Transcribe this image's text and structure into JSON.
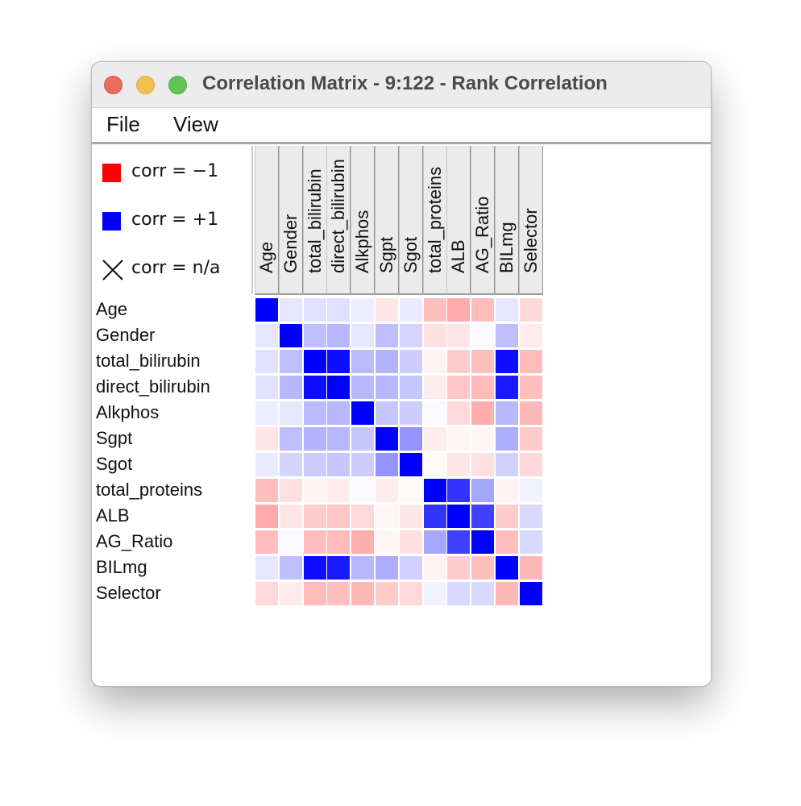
{
  "window": {
    "title": "Correlation Matrix - 9:122 - Rank Correlation"
  },
  "menu": {
    "items": [
      "File",
      "View"
    ]
  },
  "legend": {
    "neg_label": "corr = −1",
    "pos_label": "corr = +1",
    "na_label": "corr = n/a",
    "neg_color": "#ff0000",
    "pos_color": "#0000ff",
    "na_icon": "x-cross-icon"
  },
  "chart_data": {
    "type": "heatmap",
    "variables": [
      "Age",
      "Gender",
      "total_bilirubin",
      "direct_bilirubin",
      "Alkphos",
      "Sgpt",
      "Sgot",
      "total_proteins",
      "ALB",
      "AG_Ratio",
      "BILmg",
      "Selector"
    ],
    "row_labels": [
      "Age",
      "Gender",
      "total_bilirubin",
      "direct_bilirubin",
      "Alkphos",
      "Sgpt",
      "Sgot",
      "total_proteins",
      "ALB",
      "AG_Ratio",
      "BILmg",
      "Selector"
    ],
    "col_labels": [
      "Age",
      "Gender",
      "total_bilirubin",
      "direct_bilirubin",
      "Alkphos",
      "Sgpt",
      "Sgot",
      "total_proteins",
      "ALB",
      "AG_Ratio",
      "BILmg",
      "Selector"
    ],
    "value_range": [
      -1,
      1
    ],
    "colormap": {
      "-1": "#ff0000",
      "0": "#ffffff",
      "1": "#0000ff"
    },
    "values": [
      [
        1.0,
        0.1,
        0.12,
        0.12,
        0.07,
        -0.1,
        0.08,
        -0.25,
        -0.33,
        -0.26,
        0.1,
        -0.15
      ],
      [
        0.1,
        1.0,
        0.25,
        0.28,
        0.1,
        0.25,
        0.17,
        -0.12,
        -0.1,
        0.02,
        0.25,
        -0.08
      ],
      [
        0.12,
        0.25,
        1.0,
        0.95,
        0.27,
        0.3,
        0.2,
        -0.05,
        -0.2,
        -0.25,
        0.95,
        -0.27
      ],
      [
        0.12,
        0.28,
        0.95,
        1.0,
        0.28,
        0.28,
        0.22,
        -0.07,
        -0.22,
        -0.27,
        0.9,
        -0.25
      ],
      [
        0.07,
        0.1,
        0.27,
        0.28,
        1.0,
        0.22,
        0.2,
        0.02,
        -0.15,
        -0.32,
        0.28,
        -0.28
      ],
      [
        -0.1,
        0.25,
        0.3,
        0.28,
        0.22,
        1.0,
        0.42,
        -0.07,
        -0.03,
        -0.04,
        0.32,
        -0.2
      ],
      [
        0.08,
        0.17,
        0.2,
        0.22,
        0.2,
        0.42,
        1.0,
        -0.02,
        -0.1,
        -0.12,
        0.18,
        -0.15
      ],
      [
        -0.25,
        -0.12,
        -0.05,
        -0.07,
        0.02,
        -0.07,
        -0.02,
        1.0,
        0.8,
        0.35,
        -0.05,
        0.05
      ],
      [
        -0.33,
        -0.1,
        -0.2,
        -0.22,
        -0.15,
        -0.03,
        -0.1,
        0.8,
        1.0,
        0.75,
        -0.2,
        0.15
      ],
      [
        -0.26,
        0.02,
        -0.25,
        -0.27,
        -0.32,
        -0.04,
        -0.12,
        0.35,
        0.75,
        1.0,
        -0.25,
        0.15
      ],
      [
        0.1,
        0.25,
        0.95,
        0.9,
        0.28,
        0.32,
        0.18,
        -0.05,
        -0.2,
        -0.25,
        1.0,
        -0.28
      ],
      [
        -0.15,
        -0.08,
        -0.27,
        -0.25,
        -0.28,
        -0.2,
        -0.15,
        0.05,
        0.15,
        0.15,
        -0.28,
        1.0
      ]
    ]
  }
}
